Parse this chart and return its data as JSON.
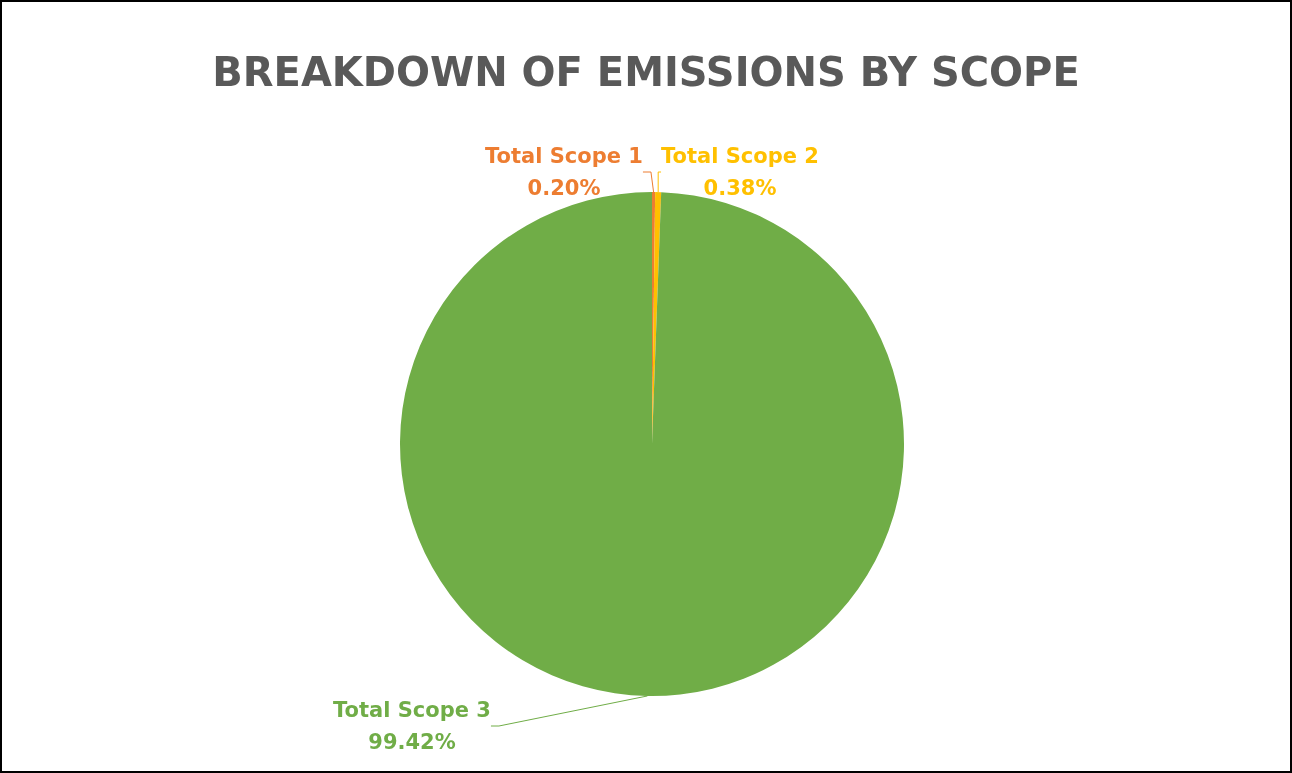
{
  "chart_data": {
    "type": "pie",
    "title": "BREAKDOWN OF EMISSIONS BY SCOPE",
    "categories": [
      "Total Scope 1",
      "Total Scope 2",
      "Total Scope 3"
    ],
    "values": [
      0.2,
      0.38,
      99.42
    ],
    "value_labels": [
      "0.20%",
      "0.38%",
      "99.42%"
    ],
    "colors": [
      "#ed7d31",
      "#ffc000",
      "#70ad47"
    ],
    "legend": false
  }
}
